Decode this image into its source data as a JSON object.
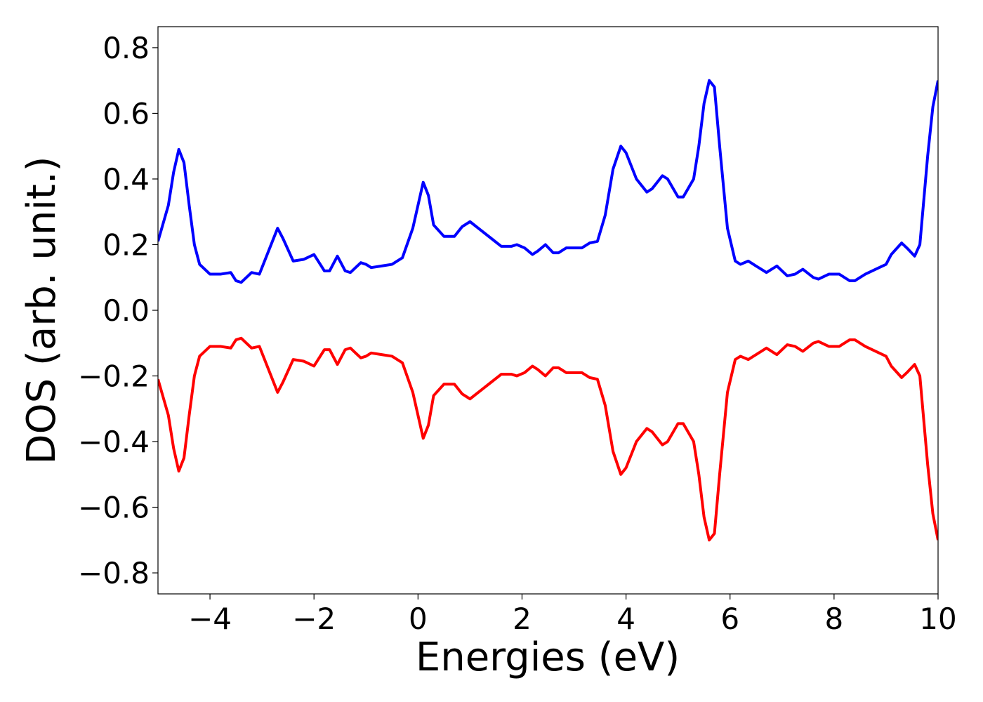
{
  "chart_data": {
    "type": "line",
    "xlabel": "Energies (eV)",
    "ylabel": "DOS (arb. unit.)",
    "xlim": [
      -5,
      10
    ],
    "ylim": [
      -0.864,
      0.864
    ],
    "xticks": [
      {
        "value": -4,
        "label": "−4"
      },
      {
        "value": -2,
        "label": "−2"
      },
      0,
      2,
      4,
      6,
      8,
      10
    ],
    "yticks": [
      {
        "value": -0.8,
        "label": "−0.8"
      },
      {
        "value": -0.6,
        "label": "−0.6"
      },
      {
        "value": -0.4,
        "label": "−0.4"
      },
      {
        "value": -0.2,
        "label": "−0.2"
      },
      {
        "value": 0,
        "label": "0.0"
      },
      0.2,
      0.4,
      0.6,
      0.8
    ],
    "x": [
      -5,
      -4.8,
      -4.7,
      -4.6,
      -4.5,
      -4.4,
      -4.3,
      -4.2,
      -4.0,
      -3.8,
      -3.6,
      -3.5,
      -3.4,
      -3.2,
      -3.05,
      -2.9,
      -2.7,
      -2.6,
      -2.4,
      -2.2,
      -2.0,
      -1.8,
      -1.7,
      -1.55,
      -1.4,
      -1.3,
      -1.1,
      -1.0,
      -0.9,
      -0.7,
      -0.5,
      -0.3,
      -0.1,
      0.1,
      0.2,
      0.3,
      0.5,
      0.7,
      0.85,
      1.0,
      1.2,
      1.4,
      1.6,
      1.8,
      1.9,
      2.05,
      2.2,
      2.3,
      2.45,
      2.6,
      2.7,
      2.85,
      3.0,
      3.15,
      3.3,
      3.45,
      3.6,
      3.75,
      3.9,
      4.0,
      4.2,
      4.4,
      4.5,
      4.7,
      4.8,
      5.0,
      5.1,
      5.3,
      5.4,
      5.5,
      5.6,
      5.7,
      5.8,
      5.95,
      6.1,
      6.2,
      6.35,
      6.5,
      6.7,
      6.9,
      7.1,
      7.25,
      7.4,
      7.6,
      7.7,
      7.9,
      8.1,
      8.3,
      8.4,
      8.6,
      8.8,
      9.0,
      9.1,
      9.3,
      9.4,
      9.55,
      9.65,
      9.8,
      9.9,
      10.0
    ],
    "series": [
      {
        "color": "#0000ff",
        "values": [
          0.21,
          0.32,
          0.42,
          0.49,
          0.45,
          0.32,
          0.2,
          0.14,
          0.11,
          0.11,
          0.115,
          0.09,
          0.085,
          0.115,
          0.11,
          0.17,
          0.25,
          0.22,
          0.15,
          0.155,
          0.17,
          0.12,
          0.12,
          0.165,
          0.12,
          0.115,
          0.145,
          0.14,
          0.13,
          0.135,
          0.14,
          0.16,
          0.25,
          0.39,
          0.35,
          0.26,
          0.225,
          0.225,
          0.255,
          0.27,
          0.245,
          0.22,
          0.195,
          0.195,
          0.2,
          0.19,
          0.17,
          0.18,
          0.2,
          0.175,
          0.175,
          0.19,
          0.19,
          0.19,
          0.205,
          0.21,
          0.29,
          0.43,
          0.5,
          0.48,
          0.4,
          0.36,
          0.37,
          0.41,
          0.4,
          0.345,
          0.345,
          0.4,
          0.5,
          0.63,
          0.7,
          0.68,
          0.5,
          0.25,
          0.15,
          0.14,
          0.15,
          0.135,
          0.115,
          0.135,
          0.105,
          0.11,
          0.125,
          0.1,
          0.095,
          0.11,
          0.11,
          0.09,
          0.09,
          0.11,
          0.125,
          0.14,
          0.17,
          0.205,
          0.19,
          0.165,
          0.2,
          0.47,
          0.62,
          0.7
        ]
      },
      {
        "color": "#ff0000",
        "values": [
          -0.21,
          -0.32,
          -0.42,
          -0.49,
          -0.45,
          -0.32,
          -0.2,
          -0.14,
          -0.11,
          -0.11,
          -0.115,
          -0.09,
          -0.085,
          -0.115,
          -0.11,
          -0.17,
          -0.25,
          -0.22,
          -0.15,
          -0.155,
          -0.17,
          -0.12,
          -0.12,
          -0.165,
          -0.12,
          -0.115,
          -0.145,
          -0.14,
          -0.13,
          -0.135,
          -0.14,
          -0.16,
          -0.25,
          -0.39,
          -0.35,
          -0.26,
          -0.225,
          -0.225,
          -0.255,
          -0.27,
          -0.245,
          -0.22,
          -0.195,
          -0.195,
          -0.2,
          -0.19,
          -0.17,
          -0.18,
          -0.2,
          -0.175,
          -0.175,
          -0.19,
          -0.19,
          -0.19,
          -0.205,
          -0.21,
          -0.29,
          -0.43,
          -0.5,
          -0.48,
          -0.4,
          -0.36,
          -0.37,
          -0.41,
          -0.4,
          -0.345,
          -0.345,
          -0.4,
          -0.5,
          -0.63,
          -0.7,
          -0.68,
          -0.5,
          -0.25,
          -0.15,
          -0.14,
          -0.15,
          -0.135,
          -0.115,
          -0.135,
          -0.105,
          -0.11,
          -0.125,
          -0.1,
          -0.095,
          -0.11,
          -0.11,
          -0.09,
          -0.09,
          -0.11,
          -0.125,
          -0.14,
          -0.17,
          -0.205,
          -0.19,
          -0.165,
          -0.2,
          -0.47,
          -0.62,
          -0.7
        ]
      }
    ]
  }
}
